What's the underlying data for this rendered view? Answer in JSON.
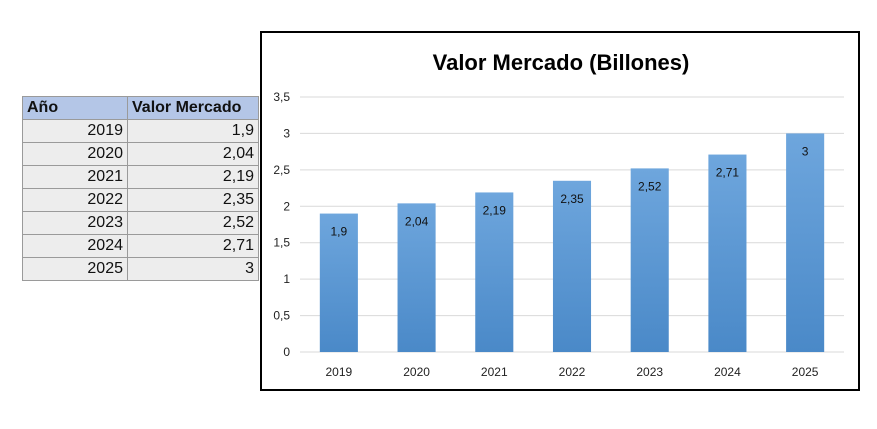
{
  "table": {
    "headers": [
      "Año",
      "Valor Mercado"
    ],
    "rows": [
      [
        "2019",
        "1,9"
      ],
      [
        "2020",
        "2,04"
      ],
      [
        "2021",
        "2,19"
      ],
      [
        "2022",
        "2,35"
      ],
      [
        "2023",
        "2,52"
      ],
      [
        "2024",
        "2,71"
      ],
      [
        "2025",
        "3"
      ]
    ]
  },
  "chart_data": {
    "type": "bar",
    "title": "Valor Mercado (Billones)",
    "categories": [
      "2019",
      "2020",
      "2021",
      "2022",
      "2023",
      "2024",
      "2025"
    ],
    "values": [
      1.9,
      2.04,
      2.19,
      2.35,
      2.52,
      2.71,
      3
    ],
    "data_labels": [
      "1,9",
      "2,04",
      "2,19",
      "2,35",
      "2,52",
      "2,71",
      "3"
    ],
    "xlabel": "",
    "ylabel": "",
    "ylim": [
      0,
      3.5
    ],
    "yticks": [
      0,
      0.5,
      1,
      1.5,
      2,
      2.5,
      3,
      3.5
    ],
    "ytick_labels": [
      "0",
      "0,5",
      "1",
      "1,5",
      "2",
      "2,5",
      "3",
      "3,5"
    ],
    "grid": true,
    "legend": "none",
    "bar_color": "#5b9bd5"
  }
}
